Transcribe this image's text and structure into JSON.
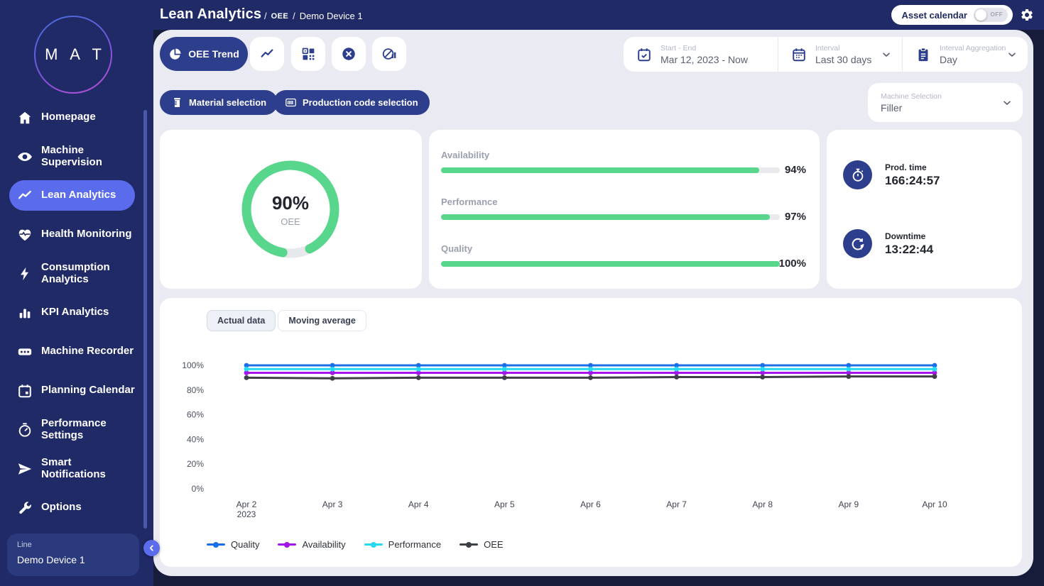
{
  "header": {
    "title": "Lean Analytics",
    "sep": "/",
    "breadcrumbs": [
      "OEE",
      "Demo Device 1"
    ],
    "asset_calendar": {
      "label": "Asset calendar",
      "state": "OFF"
    }
  },
  "sidebar": {
    "logo_text": "M A T",
    "items": [
      {
        "label": "Homepage",
        "active": false
      },
      {
        "label": "Machine Supervision",
        "active": false
      },
      {
        "label": "Lean Analytics",
        "active": true
      },
      {
        "label": "Health Monitoring",
        "active": false
      },
      {
        "label": "Consumption Analytics",
        "active": false
      },
      {
        "label": "KPI Analytics",
        "active": false
      },
      {
        "label": "Machine Recorder",
        "active": false
      },
      {
        "label": "Planning Calendar",
        "active": false
      },
      {
        "label": "Performance Settings",
        "active": false
      },
      {
        "label": "Smart Notifications",
        "active": false
      },
      {
        "label": "Options",
        "active": false
      }
    ],
    "device": {
      "label": "Line",
      "name": "Demo Device 1"
    }
  },
  "toolbar": {
    "oee_trend_label": "OEE Trend",
    "controls": [
      {
        "label": "Start - End",
        "value": "Mar 12, 2023 - Now"
      },
      {
        "label": "Interval",
        "value": "Last 30 days"
      },
      {
        "label": "Interval Aggregation",
        "value": "Day"
      }
    ]
  },
  "filters": {
    "material_label": "Material selection",
    "production_label": "Production code selection",
    "machine": {
      "label": "Machine Selection",
      "value": "Filler"
    }
  },
  "kpis": {
    "donut": {
      "value": "90%",
      "label": "OEE",
      "percent": 90
    },
    "bars": [
      {
        "label": "Availability",
        "value": "94%",
        "percent": 94
      },
      {
        "label": "Performance",
        "value": "97%",
        "percent": 97
      },
      {
        "label": "Quality",
        "value": "100%",
        "percent": 100
      }
    ],
    "times": [
      {
        "label": "Prod. time",
        "value": "166:24:57"
      },
      {
        "label": "Downtime",
        "value": "13:22:44"
      }
    ]
  },
  "chart": {
    "tabs": [
      {
        "label": "Actual data",
        "active": true
      },
      {
        "label": "Moving average",
        "active": false
      }
    ]
  },
  "chart_data": {
    "type": "line",
    "categories": [
      "Apr 2",
      "Apr 3",
      "Apr 4",
      "Apr 5",
      "Apr 6",
      "Apr 7",
      "Apr 8",
      "Apr 9",
      "Apr 10"
    ],
    "first_tick_sublabel": "2023",
    "series": [
      {
        "name": "Quality",
        "color": "#1b6ee5",
        "values": [
          100,
          100,
          100,
          100,
          100,
          100,
          100,
          100,
          100
        ]
      },
      {
        "name": "Availability",
        "color": "#a315e8",
        "values": [
          94,
          94,
          94,
          94,
          94,
          94,
          94,
          94,
          94
        ]
      },
      {
        "name": "Performance",
        "color": "#25d9f0",
        "values": [
          97,
          97,
          97,
          97,
          97,
          97,
          97,
          97,
          97
        ]
      },
      {
        "name": "OEE",
        "color": "#3d4045",
        "values": [
          90,
          89.5,
          90,
          90,
          90,
          90.5,
          90.5,
          91,
          91
        ]
      }
    ],
    "ylim": [
      0,
      100
    ],
    "y_ticks": [
      "0%",
      "20%",
      "40%",
      "60%",
      "80%",
      "100%"
    ],
    "grid": false,
    "legend_position": "bottom"
  },
  "colors": {
    "accent_navy": "#2d3e8d",
    "sidebar_navy": "#202a66",
    "active_item": "#5a6bec",
    "green": "#57d68c",
    "page_bg": "#e9eaf2"
  }
}
